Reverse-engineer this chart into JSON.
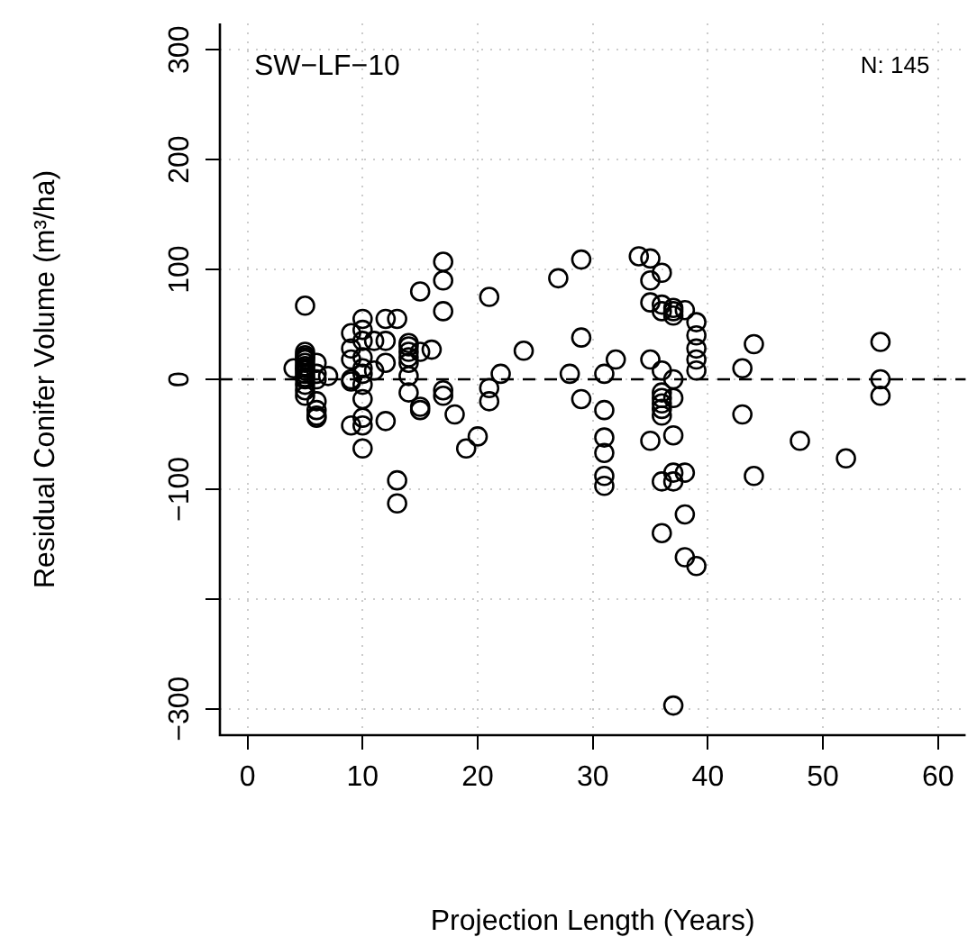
{
  "chart_data": {
    "type": "scatter",
    "xlabel": "Projection Length (Years)",
    "ylabel": "Residual Conifer Volume (m³/ha)",
    "annotations": [
      "SW−LF−10",
      "N: 145"
    ],
    "xlim": [
      -2.4,
      62.4
    ],
    "ylim": [
      -324,
      324
    ],
    "xticks": [
      0,
      10,
      20,
      30,
      40,
      50,
      60
    ],
    "yticks": [
      -300,
      {
        "value": -200,
        "label": null
      },
      -100,
      0,
      100,
      200,
      300
    ],
    "grid": true,
    "marker": "circle",
    "legend": false,
    "ref_lines": [
      {
        "axis": "y",
        "value": 0,
        "line_style": "dashed",
        "color": "#000000"
      }
    ],
    "series": [
      {
        "color": "#000000",
        "x": [
          4,
          5,
          5,
          5,
          5,
          5,
          5,
          5,
          5,
          5,
          5,
          5,
          5,
          5,
          5,
          5,
          6,
          6,
          6,
          6,
          6,
          6,
          6,
          7,
          9,
          9,
          9,
          9,
          9,
          9,
          10,
          10,
          10,
          10,
          10,
          10,
          10,
          10,
          10,
          10,
          10,
          11,
          11,
          12,
          12,
          12,
          12,
          13,
          13,
          13,
          14,
          14,
          14,
          14,
          14,
          14,
          14,
          15,
          15,
          15,
          15,
          16,
          17,
          17,
          17,
          17,
          17,
          18,
          19,
          20,
          21,
          21,
          21,
          22,
          24,
          27,
          28,
          29,
          29,
          29,
          31,
          31,
          31,
          31,
          31,
          31,
          32,
          34,
          35,
          35,
          35,
          35,
          35,
          36,
          36,
          36,
          36,
          36,
          36,
          36,
          36,
          36,
          36,
          36,
          37,
          37,
          37,
          37,
          37,
          37,
          37,
          37,
          37,
          38,
          38,
          38,
          38,
          39,
          39,
          39,
          39,
          39,
          39,
          43,
          43,
          44,
          44,
          48,
          52,
          55,
          55,
          55
        ],
        "values": [
          10,
          67,
          25,
          22,
          20,
          18,
          15,
          12,
          10,
          8,
          5,
          2,
          0,
          -5,
          -10,
          -15,
          15,
          5,
          0,
          -20,
          -28,
          -33,
          -35,
          3,
          42,
          28,
          18,
          0,
          -2,
          -42,
          55,
          45,
          35,
          20,
          10,
          5,
          -5,
          -18,
          -35,
          -42,
          -63,
          35,
          8,
          55,
          35,
          15,
          -38,
          55,
          -92,
          -113,
          33,
          30,
          25,
          20,
          15,
          3,
          -12,
          80,
          25,
          -25,
          -28,
          27,
          107,
          90,
          62,
          -10,
          -15,
          -32,
          -63,
          -52,
          75,
          -8,
          -20,
          5,
          26,
          92,
          5,
          109,
          38,
          -18,
          5,
          -28,
          -53,
          -67,
          -88,
          -97,
          18,
          112,
          110,
          90,
          70,
          18,
          -56,
          97,
          68,
          62,
          8,
          -12,
          -17,
          -22,
          -27,
          -33,
          -93,
          -140,
          65,
          62,
          58,
          0,
          -17,
          -51,
          -85,
          -93,
          -297,
          63,
          -85,
          -123,
          -162,
          52,
          40,
          28,
          18,
          8,
          -170,
          10,
          -32,
          32,
          -88,
          -56,
          -72,
          34,
          0,
          -15
        ]
      }
    ]
  }
}
